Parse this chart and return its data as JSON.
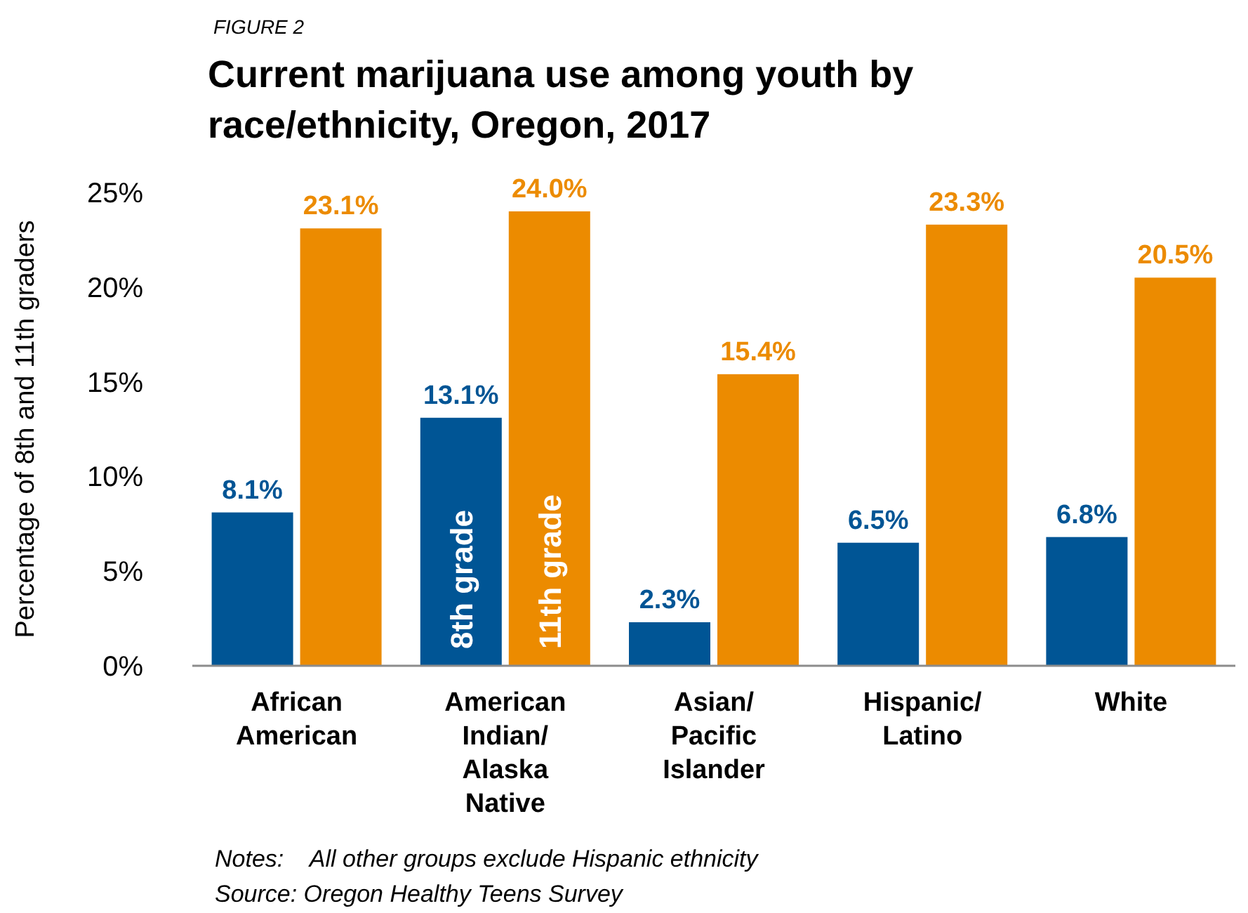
{
  "chart_data": {
    "type": "bar",
    "subtitle": "FIGURE 2",
    "title": "Current marijuana use among youth by race/ethnicity, Oregon, 2017",
    "ylabel": "Percentage of 8th and 11th graders",
    "categories": [
      "African American",
      "American Indian/ Alaska Native",
      "Asian/ Pacific Islander",
      "Hispanic/ Latino",
      "White"
    ],
    "series": [
      {
        "name": "8th grade",
        "color": "#005595",
        "values": [
          8.1,
          13.1,
          2.3,
          6.5,
          6.8
        ]
      },
      {
        "name": "11th grade",
        "color": "#ec8b00",
        "values": [
          23.1,
          24.0,
          15.4,
          23.3,
          20.5
        ]
      }
    ],
    "value_labels": [
      [
        "8.1%",
        "13.1%",
        "2.3%",
        "6.5%",
        "6.8%"
      ],
      [
        "23.1%",
        "24.0%",
        "15.4%",
        "23.3%",
        "20.5%"
      ]
    ],
    "ylim": [
      0,
      25
    ],
    "yticks": [
      {
        "value": 0,
        "label": "0%"
      },
      {
        "value": 5,
        "label": "5%"
      },
      {
        "value": 10,
        "label": "10%"
      },
      {
        "value": 15,
        "label": "15%"
      },
      {
        "value": 20,
        "label": "20%"
      },
      {
        "value": 25,
        "label": "25%"
      }
    ],
    "grid": false,
    "annotations": [
      "Notes:    All other groups exclude Hispanic ethnicity",
      "Source: Oregon Healthy Teens Survey"
    ]
  }
}
